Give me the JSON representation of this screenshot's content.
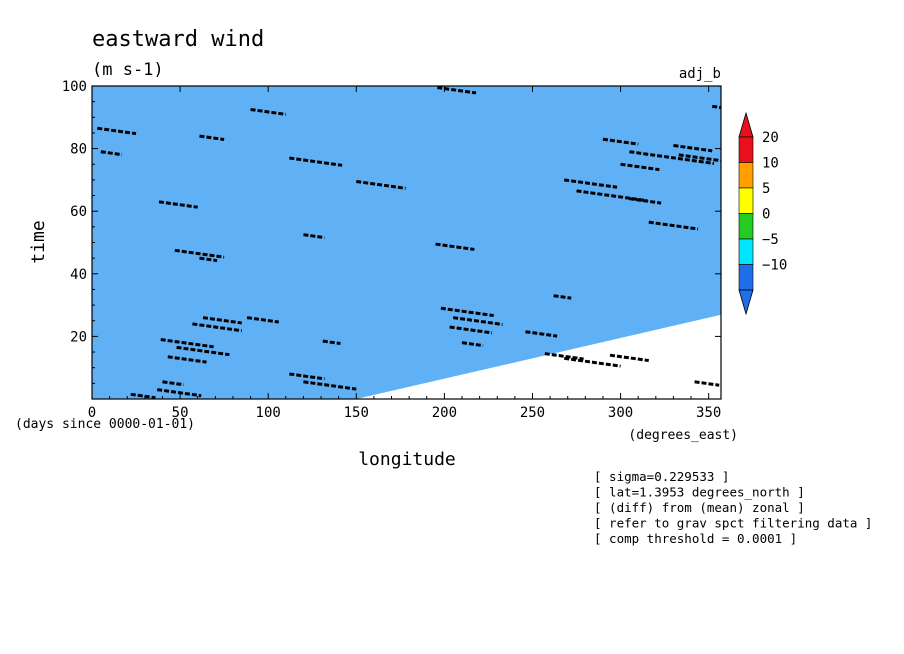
{
  "chart_data": {
    "type": "heatmap",
    "title": "eastward wind",
    "subtitle": "(m s-1)",
    "run_label": "adj_b",
    "xlabel": "longitude",
    "x_units": "(degrees_east)",
    "ylabel": "time",
    "y_units": "(days since 0000-01-01)",
    "xlim": [
      0,
      357
    ],
    "ylim": [
      0,
      100
    ],
    "x_ticks": [
      0,
      50,
      100,
      150,
      200,
      250,
      300,
      350
    ],
    "y_ticks": [
      20,
      40,
      60,
      80,
      100
    ],
    "colorbar": {
      "levels": [
        -10,
        -5,
        0,
        5,
        10,
        20
      ],
      "labels": [
        "20",
        "10",
        "5",
        "0",
        "−5",
        "−10"
      ],
      "colors": [
        "#1e6fe8",
        "#00e5ff",
        "#22cc22",
        "#ffff00",
        "#ffa000",
        "#e8101a"
      ]
    },
    "annotations": [
      "[ sigma=0.229533 ]",
      "[ lat=1.3953 degrees_north ]",
      "[ (diff) from (mean) zonal ]",
      "[ refer to grav spct filtering data ]",
      "[ comp threshold = 0.0001 ]"
    ],
    "band_slope_deg_per_day": 1.6,
    "contour_segments": [
      {
        "lon": 3,
        "t": 86.5,
        "len": 22
      },
      {
        "lon": 5,
        "t": 79,
        "len": 12
      },
      {
        "lon": 22,
        "t": 1.5,
        "len": 14
      },
      {
        "lon": 38,
        "t": 63,
        "len": 22
      },
      {
        "lon": 40,
        "t": 5.5,
        "len": 12
      },
      {
        "lon": 37,
        "t": 3,
        "len": 25
      },
      {
        "lon": 39,
        "t": 19,
        "len": 30
      },
      {
        "lon": 43,
        "t": 13.5,
        "len": 22
      },
      {
        "lon": 48,
        "t": 16.5,
        "len": 30
      },
      {
        "lon": 47,
        "t": 47.5,
        "len": 28
      },
      {
        "lon": 57,
        "t": 24,
        "len": 28
      },
      {
        "lon": 63,
        "t": 26,
        "len": 22
      },
      {
        "lon": 61,
        "t": 45,
        "len": 10
      },
      {
        "lon": 61,
        "t": 84,
        "len": 14
      },
      {
        "lon": 90,
        "t": 92.5,
        "len": 20
      },
      {
        "lon": 88,
        "t": 26,
        "len": 18
      },
      {
        "lon": 112,
        "t": 8,
        "len": 20
      },
      {
        "lon": 112,
        "t": 77,
        "len": 30
      },
      {
        "lon": 120,
        "t": 5.5,
        "len": 30
      },
      {
        "lon": 120,
        "t": 52.5,
        "len": 12
      },
      {
        "lon": 131,
        "t": 18.5,
        "len": 10
      },
      {
        "lon": 150,
        "t": 69.5,
        "len": 28
      },
      {
        "lon": 195,
        "t": 49.5,
        "len": 22
      },
      {
        "lon": 196,
        "t": 99.5,
        "len": 22
      },
      {
        "lon": 198,
        "t": 29,
        "len": 30
      },
      {
        "lon": 203,
        "t": 23,
        "len": 24
      },
      {
        "lon": 205,
        "t": 26,
        "len": 28
      },
      {
        "lon": 210,
        "t": 18,
        "len": 12
      },
      {
        "lon": 246,
        "t": 21.5,
        "len": 18
      },
      {
        "lon": 257,
        "t": 14.5,
        "len": 22
      },
      {
        "lon": 262,
        "t": 33,
        "len": 10
      },
      {
        "lon": 268,
        "t": 13,
        "len": 32
      },
      {
        "lon": 268,
        "t": 70,
        "len": 30
      },
      {
        "lon": 275,
        "t": 66.5,
        "len": 40
      },
      {
        "lon": 290,
        "t": 83,
        "len": 20
      },
      {
        "lon": 294,
        "t": 14,
        "len": 22
      },
      {
        "lon": 300,
        "t": 75,
        "len": 22
      },
      {
        "lon": 305,
        "t": 79,
        "len": 48
      },
      {
        "lon": 305,
        "t": 64,
        "len": 18
      },
      {
        "lon": 316,
        "t": 56.5,
        "len": 28
      },
      {
        "lon": 330,
        "t": 81,
        "len": 22
      },
      {
        "lon": 333,
        "t": 78,
        "len": 24
      },
      {
        "lon": 342,
        "t": 5.5,
        "len": 14
      },
      {
        "lon": 352,
        "t": 93.5,
        "len": 6
      }
    ]
  }
}
